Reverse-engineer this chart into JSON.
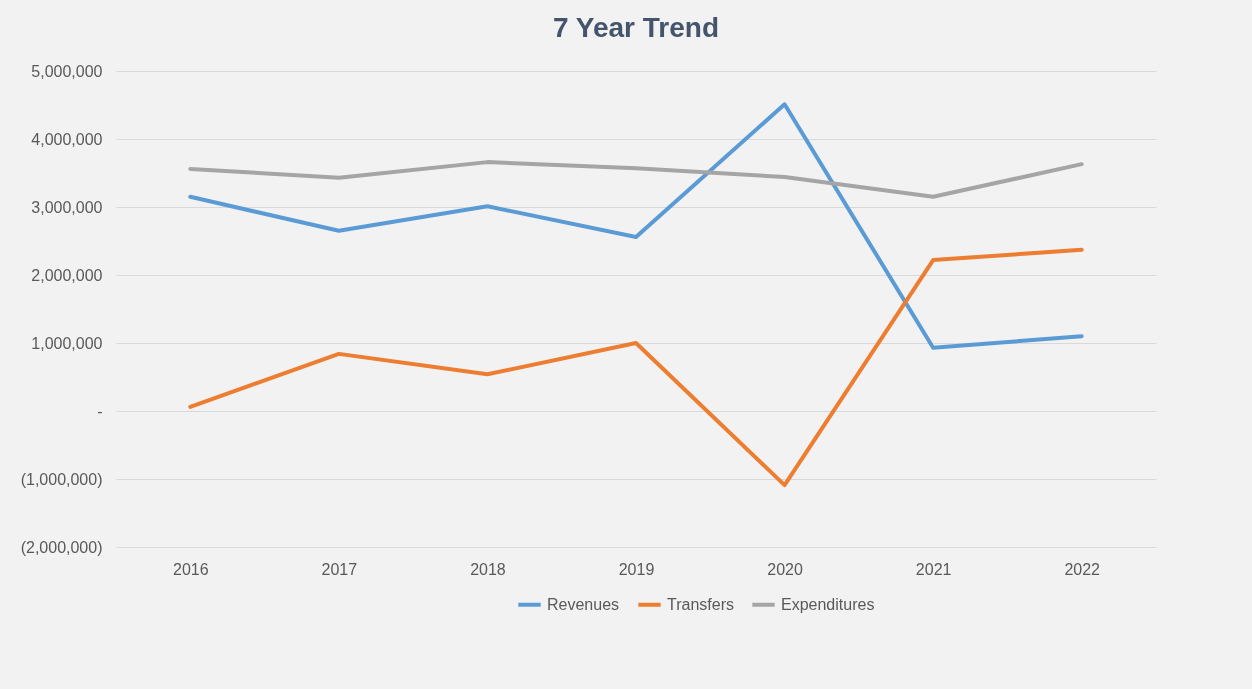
{
  "chart_data": {
    "type": "line",
    "title": "7 Year Trend",
    "categories": [
      "2016",
      "2017",
      "2018",
      "2019",
      "2020",
      "2021",
      "2022"
    ],
    "series": [
      {
        "name": "Revenues",
        "color": "#5b9bd5",
        "values": [
          3150000,
          2650000,
          3010000,
          2560000,
          4510000,
          930000,
          1100000
        ]
      },
      {
        "name": "Transfers",
        "color": "#ed7d31",
        "values": [
          60000,
          840000,
          540000,
          1000000,
          -1090000,
          2220000,
          2370000
        ]
      },
      {
        "name": "Expenditures",
        "color": "#a5a5a5",
        "values": [
          3560000,
          3430000,
          3660000,
          3570000,
          3440000,
          3150000,
          3630000
        ]
      }
    ],
    "ylim": [
      -2000000,
      5000000
    ],
    "yticks": [
      {
        "value": -2000000,
        "label": "(2,000,000)"
      },
      {
        "value": -1000000,
        "label": "(1,000,000)"
      },
      {
        "value": 0,
        "label": "-"
      },
      {
        "value": 1000000,
        "label": "1,000,000"
      },
      {
        "value": 2000000,
        "label": "2,000,000"
      },
      {
        "value": 3000000,
        "label": "3,000,000"
      },
      {
        "value": 4000000,
        "label": "4,000,000"
      },
      {
        "value": 5000000,
        "label": "5,000,000"
      }
    ],
    "grid": "y",
    "legend": "bottom",
    "marker": "none",
    "line_style": "solid"
  }
}
